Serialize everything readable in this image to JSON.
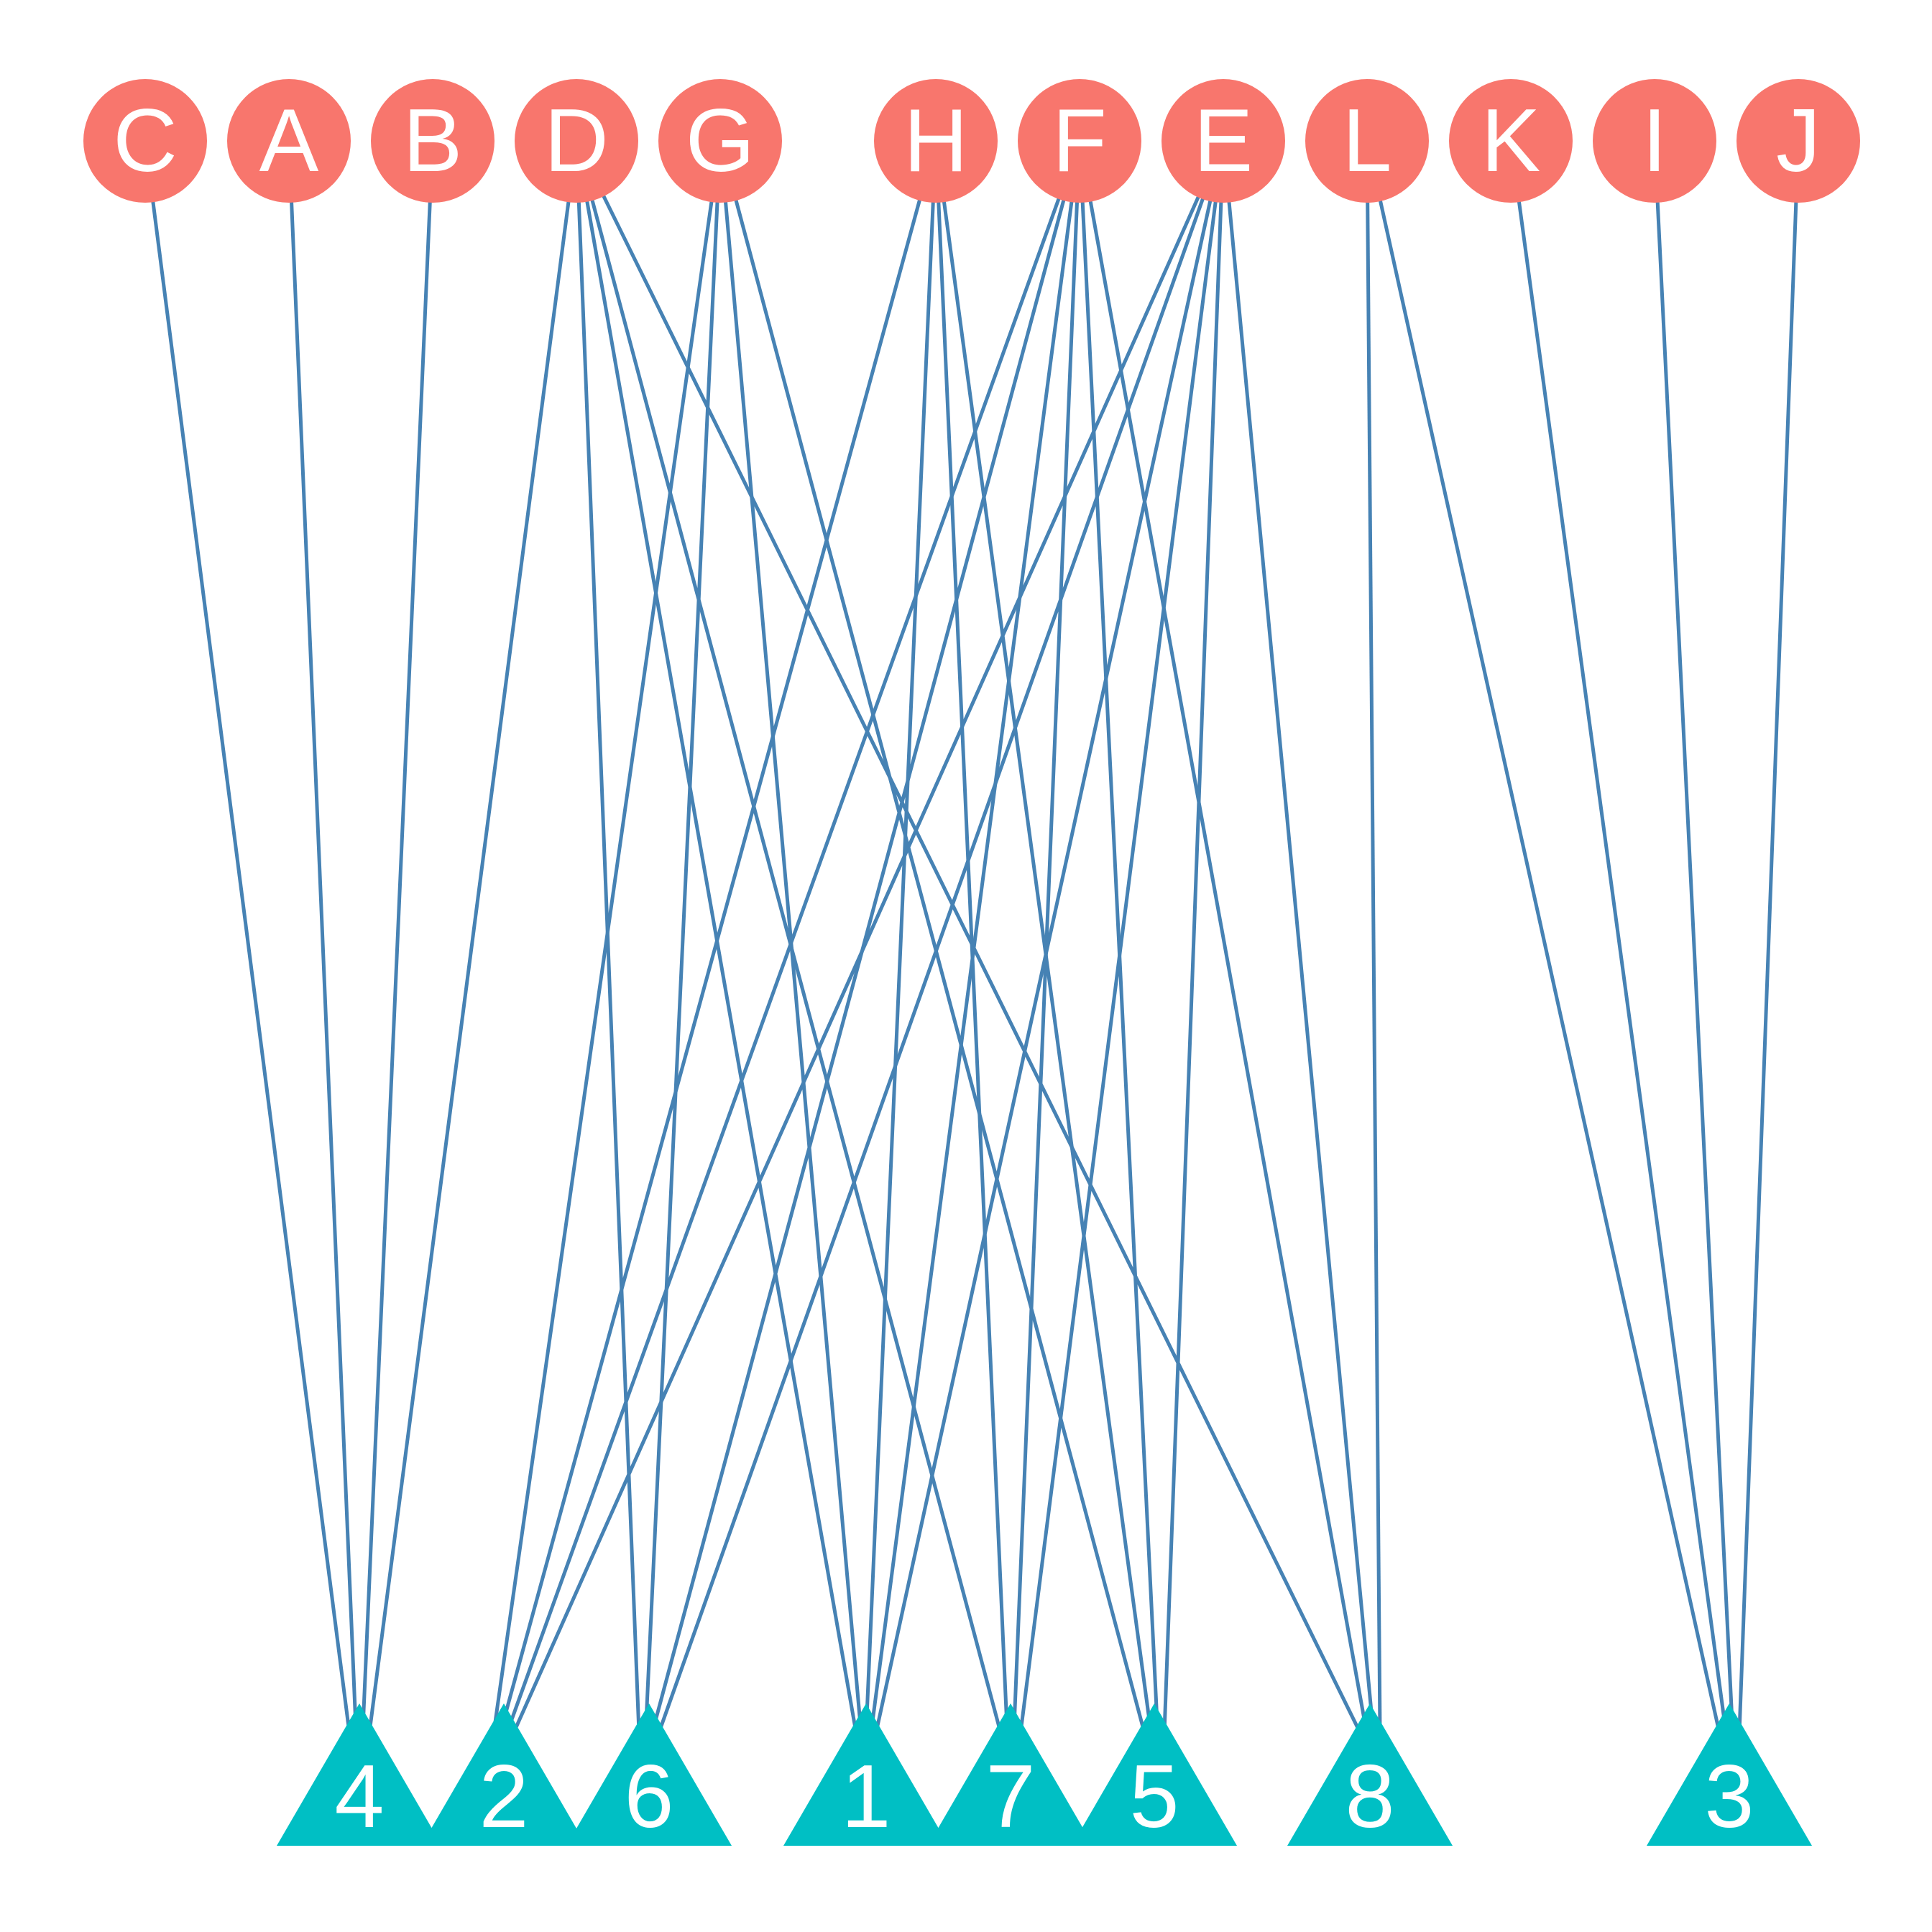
{
  "diagram": {
    "type": "bipartite-network",
    "colors": {
      "top_node": "#F8766D",
      "bottom_node": "#00BFC4",
      "edge": "#4682B4",
      "label": "#FFFFFF"
    },
    "top_nodes": [
      "C",
      "A",
      "B",
      "D",
      "G",
      "H",
      "F",
      "E",
      "L",
      "K",
      "I",
      "J"
    ],
    "bottom_nodes": [
      "4",
      "2",
      "6",
      "1",
      "7",
      "5",
      "8",
      "3"
    ],
    "edges": [
      [
        "C",
        "4"
      ],
      [
        "A",
        "4"
      ],
      [
        "B",
        "4"
      ],
      [
        "D",
        "4"
      ],
      [
        "D",
        "6"
      ],
      [
        "D",
        "1"
      ],
      [
        "D",
        "7"
      ],
      [
        "D",
        "8"
      ],
      [
        "G",
        "2"
      ],
      [
        "G",
        "6"
      ],
      [
        "G",
        "1"
      ],
      [
        "G",
        "5"
      ],
      [
        "H",
        "2"
      ],
      [
        "H",
        "1"
      ],
      [
        "H",
        "7"
      ],
      [
        "H",
        "5"
      ],
      [
        "F",
        "2"
      ],
      [
        "F",
        "6"
      ],
      [
        "F",
        "1"
      ],
      [
        "F",
        "7"
      ],
      [
        "F",
        "5"
      ],
      [
        "F",
        "8"
      ],
      [
        "E",
        "2"
      ],
      [
        "E",
        "6"
      ],
      [
        "E",
        "1"
      ],
      [
        "E",
        "7"
      ],
      [
        "E",
        "5"
      ],
      [
        "E",
        "8"
      ],
      [
        "L",
        "8"
      ],
      [
        "L",
        "3"
      ],
      [
        "K",
        "3"
      ],
      [
        "I",
        "3"
      ],
      [
        "J",
        "3"
      ]
    ]
  }
}
